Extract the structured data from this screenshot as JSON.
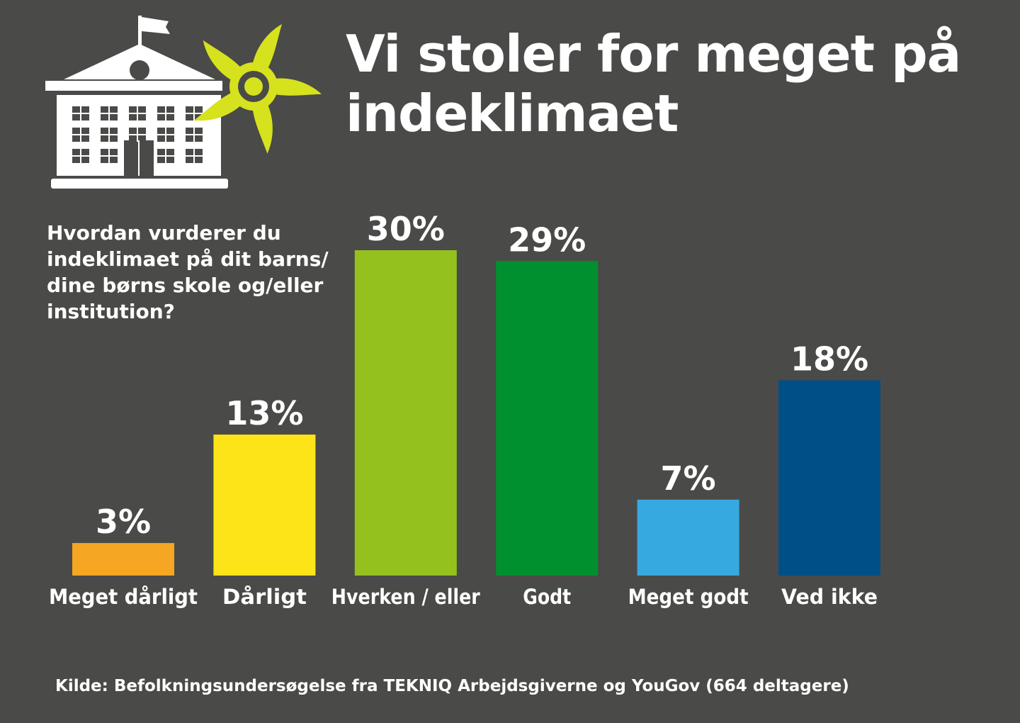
{
  "title": "Vi stoler for meget på indeklimaet",
  "question": "Hvordan vurderer du indeklimaet på dit barns/ dine børns skole og/eller institution?",
  "source": "Kilde: Befolkningsundersøgelse fra TEKNIQ Arbejdsgiverne og YouGov (664 deltagere)",
  "colors": {
    "background": "#4a4a48",
    "text": "#ffffff",
    "fan": "#d6e21d"
  },
  "icons": {
    "school": "school-building-icon",
    "fan": "ventilation-fan-icon"
  },
  "chart_data": {
    "type": "bar",
    "categories": [
      "Meget dårligt",
      "Dårligt",
      "Hverken / eller",
      "Godt",
      "Meget godt",
      "Ved ikke"
    ],
    "values": [
      3,
      13,
      30,
      29,
      7,
      18
    ],
    "value_labels": [
      "3%",
      "13%",
      "30%",
      "29%",
      "7%",
      "18%"
    ],
    "colors": [
      "#f5a623",
      "#fde418",
      "#95c11f",
      "#00902f",
      "#36a9e1",
      "#005086"
    ],
    "title": "Vi stoler for meget på indeklimaet",
    "xlabel": "",
    "ylabel": "",
    "ylim": [
      0,
      30
    ],
    "grid": false,
    "legend": "none"
  }
}
